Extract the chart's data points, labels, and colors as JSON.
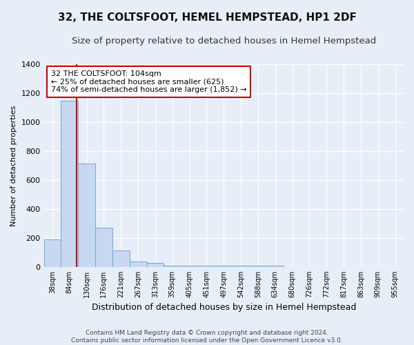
{
  "title": "32, THE COLTSFOOT, HEMEL HEMPSTEAD, HP1 2DF",
  "subtitle": "Size of property relative to detached houses in Hemel Hempstead",
  "xlabel": "Distribution of detached houses by size in Hemel Hempstead",
  "ylabel": "Number of detached properties",
  "bin_labels": [
    "38sqm",
    "84sqm",
    "130sqm",
    "176sqm",
    "221sqm",
    "267sqm",
    "313sqm",
    "359sqm",
    "405sqm",
    "451sqm",
    "497sqm",
    "542sqm",
    "588sqm",
    "634sqm",
    "680sqm",
    "726sqm",
    "772sqm",
    "817sqm",
    "863sqm",
    "909sqm",
    "955sqm"
  ],
  "bar_heights": [
    192,
    1148,
    715,
    270,
    115,
    35,
    28,
    8,
    8,
    8,
    8,
    8,
    8,
    8,
    0,
    0,
    0,
    0,
    0,
    0,
    0
  ],
  "bar_color": "#c8d8f0",
  "bar_edge_color": "#6aaad4",
  "red_line_x": 1.42,
  "annotation_line1": "32 THE COLTSFOOT: 104sqm",
  "annotation_line2": "← 25% of detached houses are smaller (625)",
  "annotation_line3": "74% of semi-detached houses are larger (1,852) →",
  "annotation_box_color": "#ffffff",
  "annotation_box_edge": "#cc0000",
  "ylim": [
    0,
    1400
  ],
  "yticks": [
    0,
    200,
    400,
    600,
    800,
    1000,
    1200,
    1400
  ],
  "footer_line1": "Contains HM Land Registry data © Crown copyright and database right 2024.",
  "footer_line2": "Contains public sector information licensed under the Open Government Licence v3.0.",
  "background_color": "#e8eef8",
  "grid_color": "#ffffff",
  "title_fontsize": 11,
  "subtitle_fontsize": 9.5,
  "xlabel_fontsize": 9,
  "ylabel_fontsize": 8
}
